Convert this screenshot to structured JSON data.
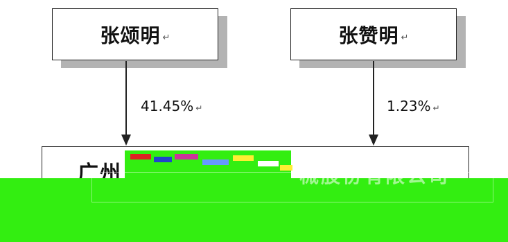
{
  "shareholders": [
    {
      "name": "张颂明",
      "stake": "41.45%"
    },
    {
      "name": "张赞明",
      "stake": "1.23%"
    }
  ],
  "company": {
    "visible_lead": "广州",
    "visible_tail": "械股份有限公司"
  },
  "paragraph_mark": "↵",
  "colors": {
    "green_overlay": "#33ee11",
    "shadow": "#b3b3b3"
  }
}
